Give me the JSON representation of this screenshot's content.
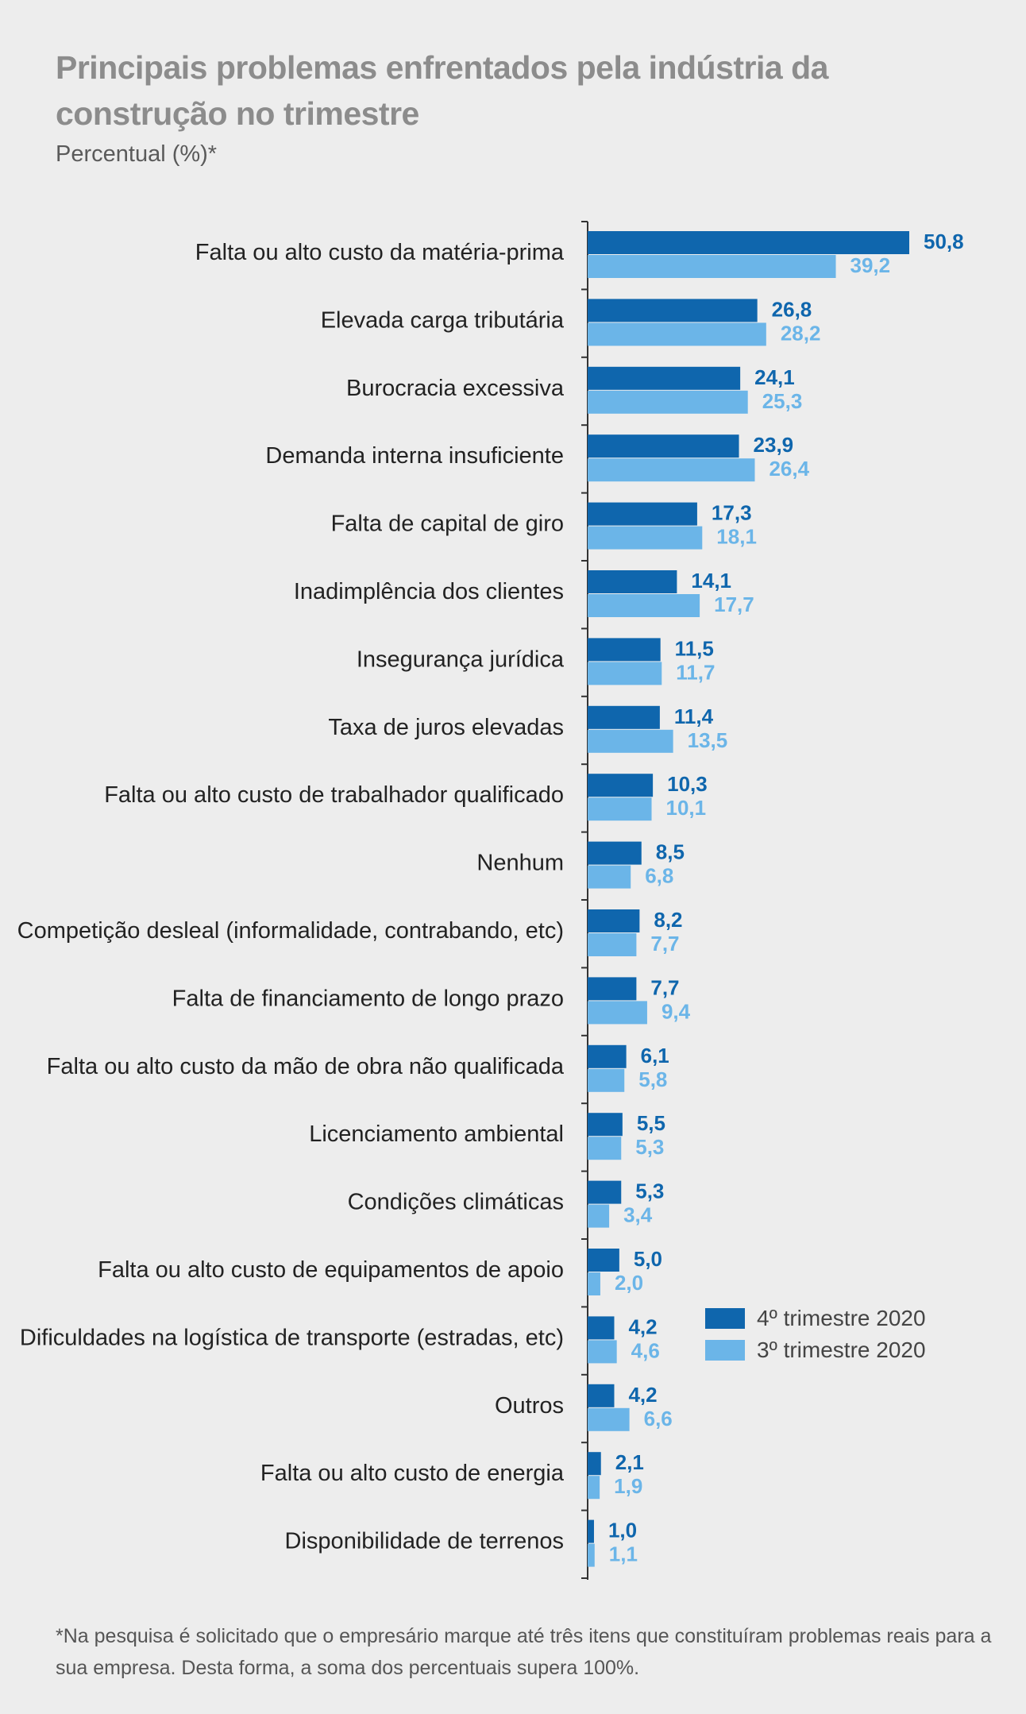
{
  "title": "Principais problemas enfrentados pela indústria da construção no trimestre",
  "subtitle": "Percentual (%)*",
  "footnote": "*Na pesquisa é solicitado que o empresário marque até três itens que constituíram problemas reais para a sua empresa. Desta forma, a soma dos percentuais supera 100%.",
  "colors": {
    "series1": "#0f66ad",
    "series2": "#6bb5e8",
    "axis": "#333333",
    "label": "#222222"
  },
  "chart_data": {
    "type": "bar",
    "orientation": "horizontal",
    "categories": [
      "Falta ou alto custo da matéria-prima",
      "Elevada carga tributária",
      "Burocracia excessiva",
      "Demanda interna insuficiente",
      "Falta de capital de giro",
      "Inadimplência dos clientes",
      "Insegurança jurídica",
      "Taxa de juros elevadas",
      "Falta ou alto custo de trabalhador qualificado",
      "Nenhum",
      "Competição desleal (informalidade, contrabando, etc)",
      "Falta de financiamento de longo prazo",
      "Falta ou alto custo da mão de obra não qualificada",
      "Licenciamento ambiental",
      "Condições climáticas",
      "Falta ou alto custo de equipamentos de apoio",
      "Dificuldades na logística de transporte (estradas, etc)",
      "Outros",
      "Falta ou alto custo de energia",
      "Disponibilidade de terrenos"
    ],
    "series": [
      {
        "name": "4º trimestre 2020",
        "values": [
          50.8,
          26.8,
          24.1,
          23.9,
          17.3,
          14.1,
          11.5,
          11.4,
          10.3,
          8.5,
          8.2,
          7.7,
          6.1,
          5.5,
          5.3,
          5.0,
          4.2,
          4.2,
          2.1,
          1.0
        ],
        "labels": [
          "50,8",
          "26,8",
          "24,1",
          "23,9",
          "17,3",
          "14,1",
          "11,5",
          "11,4",
          "10,3",
          "8,5",
          "8,2",
          "7,7",
          "6,1",
          "5,5",
          "5,3",
          "5,0",
          "4,2",
          "4,2",
          "2,1",
          "1,0"
        ]
      },
      {
        "name": "3º trimestre 2020",
        "values": [
          39.2,
          28.2,
          25.3,
          26.4,
          18.1,
          17.7,
          11.7,
          13.5,
          10.1,
          6.8,
          7.7,
          9.4,
          5.8,
          5.3,
          3.4,
          2.0,
          4.6,
          6.6,
          1.9,
          1.1
        ],
        "labels": [
          "39,2",
          "28,2",
          "25,3",
          "26,4",
          "18,1",
          "17,7",
          "11,7",
          "13,5",
          "10,1",
          "6,8",
          "7,7",
          "9,4",
          "5,8",
          "5,3",
          "3,4",
          "2,0",
          "4,6",
          "6,6",
          "1,9",
          "1,1"
        ]
      }
    ],
    "legend_position": "bottom-right",
    "grid": false,
    "xlim": [
      0,
      55
    ]
  }
}
